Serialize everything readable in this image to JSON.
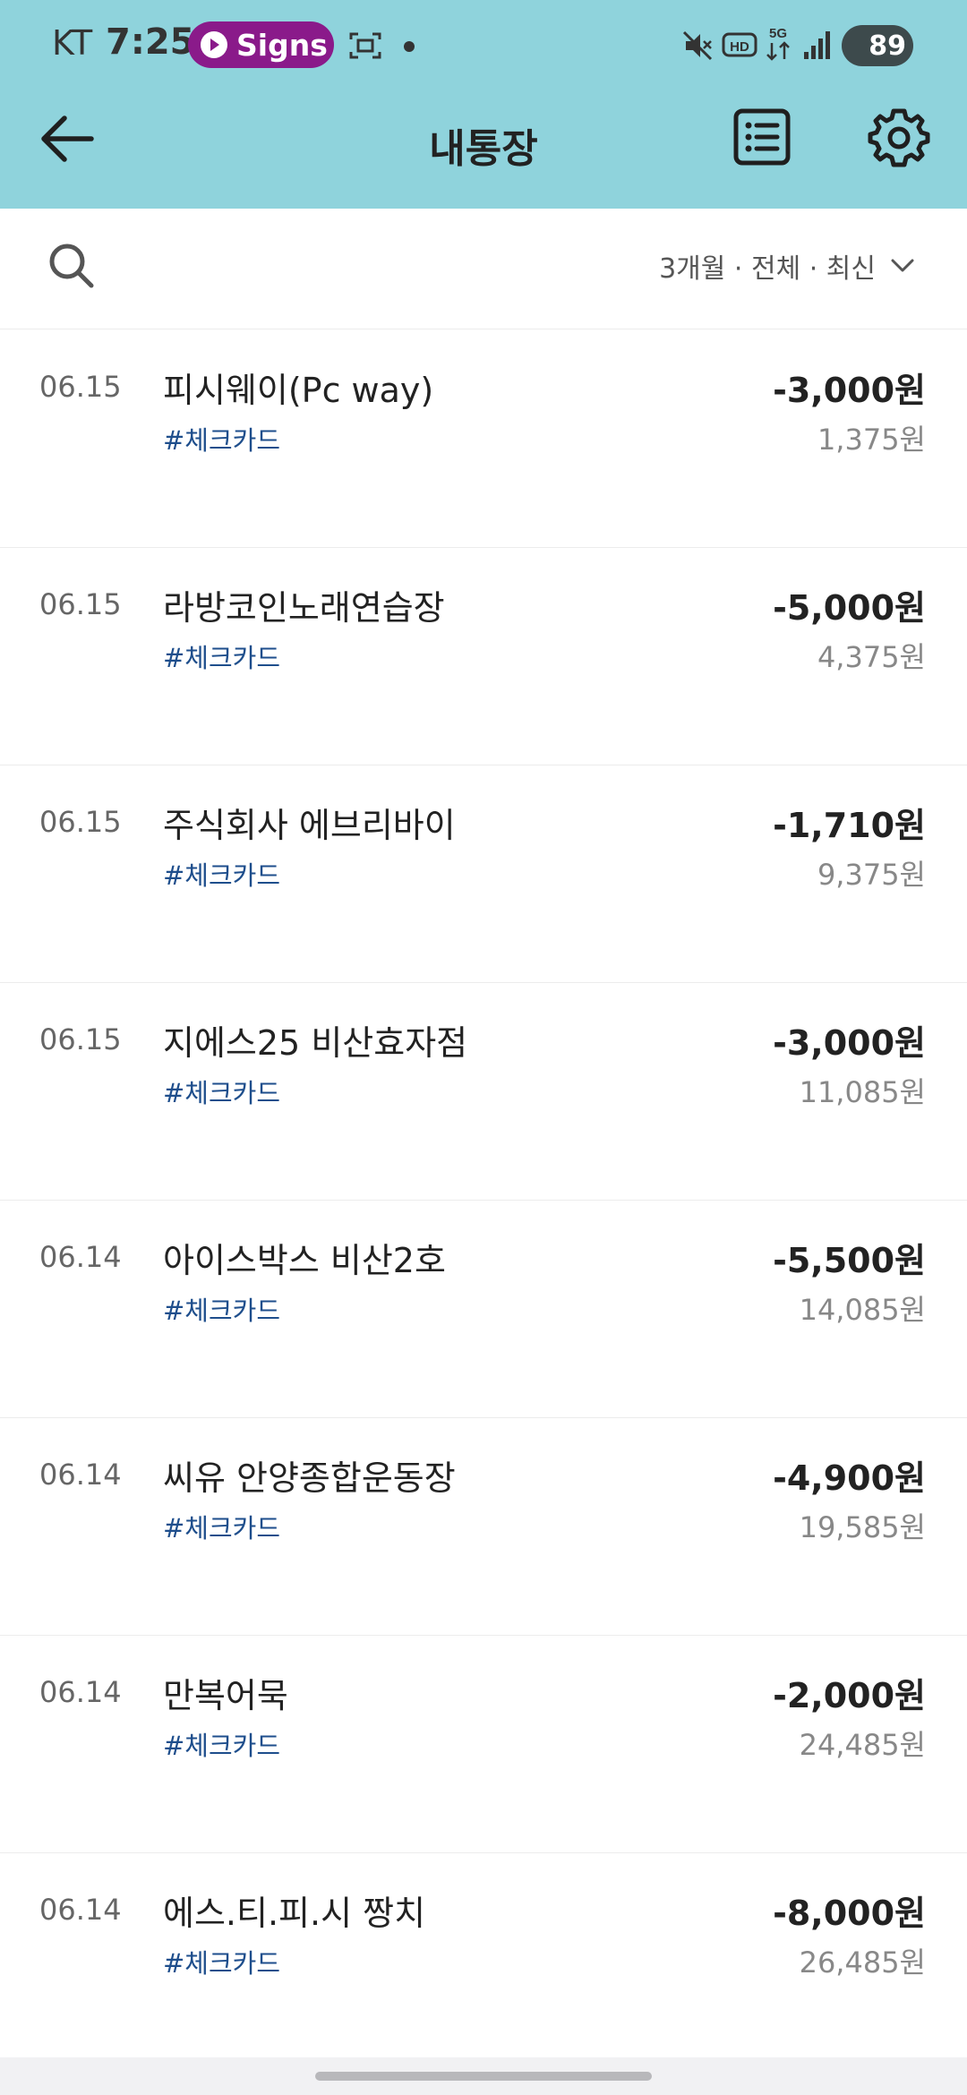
{
  "status_bar": {
    "carrier": "KT",
    "time": "7:25",
    "notification_pill": "Signs",
    "battery": "89"
  },
  "app_bar": {
    "title": "내통장"
  },
  "filter": {
    "label": "3개월 · 전체 · 최신"
  },
  "transactions": [
    {
      "date": "06.15",
      "name": "피시웨이(Pc way)",
      "tag": "#체크카드",
      "amount": "-3,000원",
      "balance": "1,375원"
    },
    {
      "date": "06.15",
      "name": "라방코인노래연습장",
      "tag": "#체크카드",
      "amount": "-5,000원",
      "balance": "4,375원"
    },
    {
      "date": "06.15",
      "name": "주식회사 에브리바이",
      "tag": "#체크카드",
      "amount": "-1,710원",
      "balance": "9,375원"
    },
    {
      "date": "06.15",
      "name": "지에스25 비산효자점",
      "tag": "#체크카드",
      "amount": "-3,000원",
      "balance": "11,085원"
    },
    {
      "date": "06.14",
      "name": "아이스박스 비산2호",
      "tag": "#체크카드",
      "amount": "-5,500원",
      "balance": "14,085원"
    },
    {
      "date": "06.14",
      "name": "씨유 안양종합운동장",
      "tag": "#체크카드",
      "amount": "-4,900원",
      "balance": "19,585원"
    },
    {
      "date": "06.14",
      "name": "만복어묵",
      "tag": "#체크카드",
      "amount": "-2,000원",
      "balance": "24,485원"
    },
    {
      "date": "06.14",
      "name": "에스.티.피.시 짱치",
      "tag": "#체크카드",
      "amount": "-8,000원",
      "balance": "26,485원"
    }
  ],
  "colors": {
    "header_bg": "#8fd3dc",
    "tag_text": "#1e4e8c",
    "pill_bg": "#8a1a8a"
  },
  "icons": [
    "back-arrow-icon",
    "list-icon",
    "gear-icon",
    "search-icon",
    "chevron-down-icon",
    "mute-icon",
    "hd-icon",
    "5g-icon",
    "signal-icon",
    "screenshot-icon"
  ]
}
